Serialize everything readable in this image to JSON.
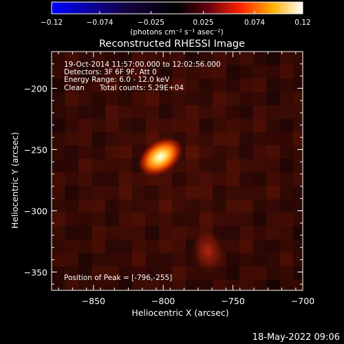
{
  "chart_data": {
    "type": "heatmap",
    "title": "Reconstructed RHESSI Image",
    "xlabel": "Heliocentric X (arcsec)",
    "ylabel": "Heliocentric Y (arcsec)",
    "xlim": [
      -880,
      -700
    ],
    "ylim": [
      -365,
      -170
    ],
    "x_ticks": [
      -850,
      -800,
      -750,
      -700
    ],
    "x_tick_labels": [
      "−850",
      "−800",
      "−750",
      "−700"
    ],
    "y_ticks": [
      -200,
      -250,
      -300,
      -350
    ],
    "y_tick_labels": [
      "−200",
      "−250",
      "−300",
      "−350"
    ],
    "colorbar": {
      "min": -0.12,
      "max": 0.12,
      "ticks": [
        -0.12,
        -0.074,
        -0.025,
        0.025,
        0.074,
        0.12
      ],
      "tick_labels": [
        "−0.12",
        "−0.074",
        "−0.025",
        "0.025",
        "0.074",
        "0.12"
      ],
      "unit_label": "(photons cm⁻² s⁻¹ asec⁻²)",
      "colormap": [
        "#0000ff",
        "#000000",
        "#ff2000",
        "#ffb000",
        "#ffffff"
      ]
    },
    "sources": [
      {
        "x": -802,
        "y": -256,
        "peak": 0.12,
        "sigma_major": 9,
        "sigma_minor": 6,
        "angle_deg": -35
      },
      {
        "x": -768,
        "y": -333,
        "peak": 0.05,
        "sigma_major": 8,
        "sigma_minor": 6,
        "angle_deg": 80
      }
    ],
    "annotations": {
      "time_range": "19-Oct-2014 11:57:00.000 to 12:02:56.000",
      "detectors": "Detectors: 3F 6F 9F, Att 0",
      "energy": "Energy Range: 6.0 - 12.0 keV",
      "method": "Clean",
      "counts": "Total counts: 5.29E+04",
      "peak": "Position of Peak = [-796,-255]"
    },
    "footer_date": "18-May-2022 09:06"
  }
}
